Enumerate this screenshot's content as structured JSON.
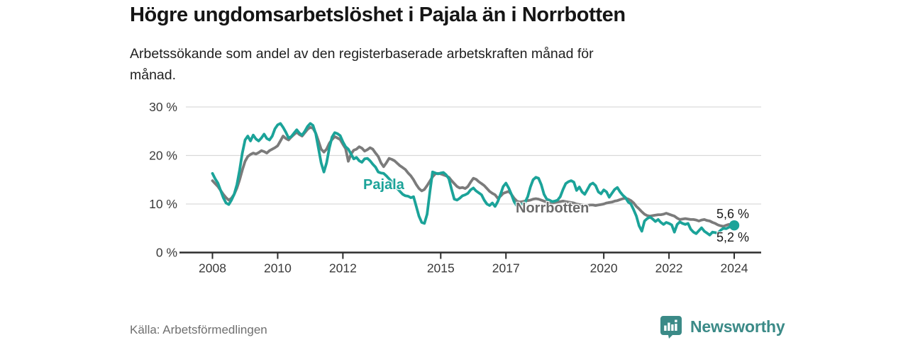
{
  "header": {
    "title": "Högre ungdomsarbetslöshet i Pajala än i Norrbotten",
    "subtitle_line1": "Arbetssökande som andel av den registerbaserade arbetskraften månad för",
    "subtitle_line2": "månad."
  },
  "chart_data": {
    "type": "line",
    "title": "Högre ungdomsarbetslöshet i Pajala än i Norrbotten",
    "subtitle": "Arbetssökande som andel av den registerbaserade arbetskraften månad för månad.",
    "unit": "%",
    "grid": "horizontal",
    "legend_position": "inline-labels",
    "x_axis": {
      "ticks": [
        2008,
        2010,
        2012,
        2015,
        2017,
        2020,
        2022,
        2024
      ]
    },
    "y_axis": {
      "ticks": [
        0,
        10,
        20,
        30
      ],
      "tick_suffix": " %",
      "range": [
        0,
        30
      ]
    },
    "x_range": [
      2008,
      2024
    ],
    "points_per_year": 12,
    "start_year": 2008,
    "series": [
      {
        "name": "Norrbotten",
        "color": "#7b7b7b",
        "end_label": "5,2 %",
        "end_dot": false,
        "values": [
          14.8,
          14.2,
          13.6,
          12.8,
          12.0,
          11.3,
          10.8,
          11.2,
          12.0,
          13.3,
          15.0,
          17.0,
          18.8,
          19.8,
          20.2,
          20.5,
          20.3,
          20.6,
          21.0,
          20.8,
          20.5,
          21.0,
          21.3,
          21.6,
          22.0,
          23.0,
          24.0,
          23.5,
          23.2,
          23.8,
          24.3,
          24.8,
          24.3,
          24.0,
          24.7,
          25.4,
          25.8,
          25.6,
          24.6,
          23.0,
          21.3,
          20.7,
          21.3,
          22.5,
          23.3,
          23.9,
          23.6,
          23.3,
          22.3,
          21.4,
          18.8,
          20.3,
          21.1,
          21.3,
          21.8,
          21.5,
          20.9,
          21.2,
          21.6,
          21.3,
          20.5,
          19.8,
          18.5,
          17.7,
          18.5,
          19.4,
          19.2,
          18.9,
          18.4,
          17.9,
          17.5,
          17.1,
          16.4,
          15.8,
          15.0,
          14.0,
          13.2,
          12.7,
          13.0,
          13.8,
          14.7,
          15.6,
          16.2,
          16.3,
          16.2,
          16.0,
          15.8,
          15.5,
          14.8,
          14.2,
          13.6,
          13.3,
          13.4,
          13.2,
          13.6,
          14.5,
          15.3,
          15.1,
          14.6,
          14.2,
          13.8,
          13.2,
          12.6,
          12.2,
          11.9,
          11.2,
          11.6,
          12.2,
          12.4,
          12.6,
          12.0,
          11.2,
          10.6,
          10.4,
          10.5,
          10.6,
          10.7,
          10.8,
          11.0,
          11.1,
          11.0,
          10.8,
          10.6,
          10.4,
          10.3,
          10.2,
          10.3,
          10.4,
          10.5,
          10.6,
          10.5,
          10.4,
          10.3,
          10.2,
          10.0,
          9.9,
          9.8,
          9.7,
          9.7,
          9.8,
          9.8,
          9.7,
          9.8,
          9.9,
          10.0,
          10.2,
          10.3,
          10.4,
          10.6,
          10.7,
          10.9,
          11.1,
          11.2,
          11.0,
          10.7,
          10.2,
          9.5,
          9.0,
          8.4,
          7.9,
          7.6,
          7.5,
          7.6,
          7.7,
          7.8,
          7.8,
          7.9,
          8.1,
          7.9,
          7.7,
          7.5,
          7.1,
          6.8,
          6.9,
          7.0,
          6.9,
          6.8,
          6.8,
          6.7,
          6.5,
          6.7,
          6.8,
          6.6,
          6.5,
          6.2,
          6.0,
          5.7,
          5.5,
          5.4,
          5.6,
          5.8,
          5.7,
          5.2
        ]
      },
      {
        "name": "Pajala",
        "color": "#1ba399",
        "end_label": "5,6 %",
        "end_dot": true,
        "values": [
          16.3,
          15.2,
          14.3,
          12.8,
          11.3,
          10.2,
          9.9,
          10.8,
          12.0,
          14.0,
          17.0,
          20.5,
          23.2,
          24.0,
          23.0,
          24.2,
          23.4,
          23.0,
          23.6,
          24.4,
          23.5,
          23.2,
          24.0,
          25.5,
          26.3,
          26.6,
          25.8,
          24.8,
          23.6,
          23.9,
          24.6,
          25.3,
          24.6,
          24.2,
          25.0,
          26.0,
          26.6,
          26.2,
          24.5,
          21.5,
          18.5,
          16.6,
          18.5,
          21.5,
          23.8,
          24.7,
          24.5,
          24.1,
          22.8,
          21.8,
          21.3,
          20.3,
          19.3,
          19.6,
          18.9,
          18.6,
          19.3,
          19.4,
          18.9,
          18.2,
          17.6,
          16.6,
          16.4,
          16.3,
          15.8,
          15.2,
          14.6,
          13.9,
          13.2,
          12.6,
          12.0,
          11.7,
          11.6,
          11.3,
          11.5,
          9.5,
          7.5,
          6.2,
          6.0,
          7.9,
          12.5,
          16.6,
          16.4,
          16.2,
          16.4,
          16.5,
          16.0,
          15.2,
          13.0,
          11.0,
          10.8,
          11.2,
          11.7,
          11.9,
          12.2,
          12.9,
          13.3,
          12.7,
          12.3,
          11.9,
          10.8,
          10.0,
          9.7,
          10.2,
          9.5,
          10.5,
          12.0,
          13.6,
          14.3,
          13.3,
          12.0,
          10.5,
          9.6,
          9.8,
          10.0,
          10.3,
          11.5,
          13.5,
          15.0,
          15.5,
          15.3,
          14.0,
          12.0,
          11.0,
          10.8,
          10.5,
          10.6,
          10.8,
          11.5,
          13.0,
          14.2,
          14.6,
          14.8,
          14.5,
          12.8,
          13.5,
          12.5,
          12.0,
          13.0,
          14.0,
          14.3,
          13.8,
          12.5,
          12.1,
          12.9,
          12.5,
          11.4,
          12.2,
          13.0,
          13.4,
          12.5,
          11.8,
          11.3,
          10.4,
          10.0,
          8.8,
          7.5,
          5.5,
          4.4,
          6.5,
          7.0,
          7.3,
          6.9,
          6.4,
          6.8,
          6.2,
          5.8,
          6.2,
          6.0,
          5.7,
          4.2,
          5.8,
          6.3,
          6.0,
          5.8,
          6.0,
          4.8,
          4.2,
          3.9,
          4.5,
          5.1,
          4.4,
          4.0,
          3.6,
          4.2,
          4.1,
          4.0,
          4.6,
          5.0,
          4.9,
          5.2,
          5.4,
          5.6
        ]
      }
    ]
  },
  "footer": {
    "source": "Källa: Arbetsförmedlingen",
    "brand_name": "Newsworthy"
  },
  "colors": {
    "pajala_teal": "#1ba399",
    "norrbotten_gray": "#7b7b7b",
    "brand_teal": "#3b8a87",
    "gridline": "#d9d9d9",
    "axis": "#2d2d2d"
  }
}
